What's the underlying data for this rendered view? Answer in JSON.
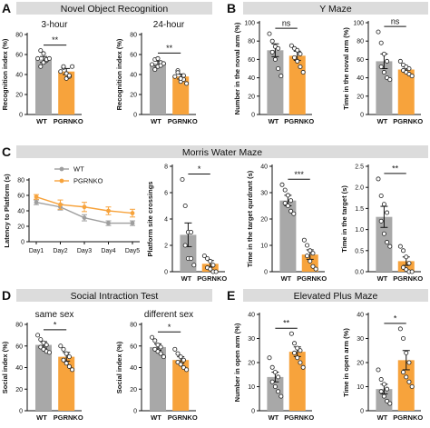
{
  "sections": {
    "A": {
      "letter": "A",
      "title": "Novel Object Recognition"
    },
    "B": {
      "letter": "B",
      "title": "Y Maze"
    },
    "C": {
      "letter": "C",
      "title": "Morris Water Maze"
    },
    "D": {
      "letter": "D",
      "title": "Social Intraction Test"
    },
    "E": {
      "letter": "E",
      "title": "Elevated Plus Maze"
    }
  },
  "colors": {
    "wt": "#a8a8a8",
    "ko": "#f7a33c",
    "band": "#dcdcdc",
    "wt_line": "#9e9e9e",
    "ko_line": "#f7a33c"
  },
  "chart_data": [
    {
      "id": "nor-3h",
      "type": "bar",
      "title": "3-hour",
      "xlabel": "",
      "ylabel": "Recognition index (%)",
      "categories": [
        "WT",
        "PGRNKO"
      ],
      "ylim": [
        0,
        80
      ],
      "yticks": [
        0,
        20,
        40,
        60,
        80
      ],
      "values": [
        55,
        43
      ],
      "errors": [
        3,
        3
      ],
      "significance": "**",
      "points": [
        [
          56,
          64,
          52,
          54,
          48,
          61,
          55,
          56
        ],
        [
          43,
          47,
          36,
          38,
          48,
          41,
          39,
          48
        ]
      ]
    },
    {
      "id": "nor-24h",
      "type": "bar",
      "title": "24-hour",
      "xlabel": "",
      "ylabel": "Recognition index (%)",
      "categories": [
        "WT",
        "PGRNKO"
      ],
      "ylim": [
        0,
        80
      ],
      "yticks": [
        0,
        20,
        40,
        60,
        80
      ],
      "values": [
        51,
        38
      ],
      "errors": [
        2.5,
        2.5
      ],
      "significance": "**",
      "points": [
        [
          50,
          55,
          48,
          52,
          45,
          56,
          49,
          51
        ],
        [
          38,
          44,
          33,
          35,
          42,
          36,
          39,
          31
        ]
      ]
    },
    {
      "id": "ymaze-number",
      "type": "bar",
      "title": "",
      "xlabel": "",
      "ylabel": "Number in the noval arm (%)",
      "categories": [
        "WT",
        "PGRNKO"
      ],
      "ylim": [
        0,
        100
      ],
      "yticks": [
        0,
        20,
        40,
        60,
        80,
        100
      ],
      "values": [
        70,
        64
      ],
      "errors": [
        7,
        5
      ],
      "significance": "ns",
      "points": [
        [
          88,
          80,
          74,
          72,
          68,
          60,
          50,
          42
        ],
        [
          75,
          72,
          70,
          66,
          62,
          58,
          52,
          46
        ]
      ]
    },
    {
      "id": "ymaze-time",
      "type": "bar",
      "title": "",
      "xlabel": "",
      "ylabel": "Time in the noval arm (%)",
      "categories": [
        "WT",
        "PGRNKO"
      ],
      "ylim": [
        0,
        100
      ],
      "yticks": [
        0,
        20,
        40,
        60,
        80,
        100
      ],
      "values": [
        58,
        49
      ],
      "errors": [
        8,
        3
      ],
      "significance": "ns",
      "points": [
        [
          90,
          78,
          66,
          58,
          52,
          46,
          40,
          38
        ],
        [
          58,
          54,
          52,
          50,
          48,
          46,
          44,
          42
        ]
      ]
    },
    {
      "id": "mwm-latency",
      "type": "line",
      "title": "",
      "xlabel": "",
      "ylabel": "Latency to Platform (s)",
      "categories": [
        "Day1",
        "Day2",
        "Day3",
        "Day4",
        "Day5"
      ],
      "ylim": [
        0,
        80
      ],
      "yticks": [
        0,
        20,
        40,
        60,
        80
      ],
      "legend_position": "top",
      "series": [
        {
          "name": "WT",
          "values": [
            51,
            45,
            31,
            24,
            24
          ],
          "errors": [
            3,
            4,
            4,
            3,
            3
          ]
        },
        {
          "name": "PGRNKO",
          "values": [
            58,
            48,
            45,
            40,
            37
          ],
          "errors": [
            3,
            6,
            6,
            5,
            5
          ]
        }
      ]
    },
    {
      "id": "mwm-crossings",
      "type": "bar",
      "title": "",
      "xlabel": "",
      "ylabel": "Platform site crossings",
      "categories": [
        "WT",
        "PGRNKO"
      ],
      "ylim": [
        0,
        8
      ],
      "yticks": [
        0,
        2,
        4,
        6,
        8
      ],
      "values": [
        2.8,
        0.6
      ],
      "errors": [
        0.9,
        0.25
      ],
      "significance": "*",
      "points": [
        [
          7,
          5,
          3,
          3,
          2,
          1,
          1,
          0.5
        ],
        [
          1.2,
          1,
          0.8,
          0.5,
          0.3,
          0.2,
          0,
          0
        ]
      ]
    },
    {
      "id": "mwm-quadrant",
      "type": "bar",
      "title": "",
      "xlabel": "",
      "ylabel": "Time in the target qurdrant (s)",
      "categories": [
        "WT",
        "PGRNKO"
      ],
      "ylim": [
        0,
        40
      ],
      "yticks": [
        0,
        10,
        20,
        30,
        40
      ],
      "values": [
        27,
        6.5
      ],
      "errors": [
        2,
        1.8
      ],
      "significance": "***",
      "points": [
        [
          33,
          31,
          29,
          27,
          26,
          25,
          23,
          22
        ],
        [
          12,
          10,
          8,
          7,
          6,
          4,
          2,
          1
        ]
      ]
    },
    {
      "id": "mwm-target",
      "type": "bar",
      "title": "",
      "xlabel": "",
      "ylabel": "Time in the target (s)",
      "categories": [
        "WT",
        "PGRNKO"
      ],
      "ylim": [
        0,
        2.5
      ],
      "yticks": [
        0.0,
        0.5,
        1.0,
        1.5,
        2.0,
        2.5
      ],
      "values": [
        1.3,
        0.25
      ],
      "errors": [
        0.25,
        0.1
      ],
      "significance": "**",
      "points": [
        [
          2.2,
          1.8,
          1.6,
          1.4,
          1.2,
          0.9,
          0.7,
          0.6
        ],
        [
          0.6,
          0.5,
          0.35,
          0.2,
          0.1,
          0.05,
          0,
          0
        ]
      ]
    },
    {
      "id": "social-same",
      "type": "bar",
      "title": "same sex",
      "xlabel": "",
      "ylabel": "Social index (%)",
      "categories": [
        "WT",
        "PGRNKO"
      ],
      "ylim": [
        0,
        80
      ],
      "yticks": [
        0,
        20,
        40,
        60,
        80
      ],
      "values": [
        61,
        50
      ],
      "errors": [
        3,
        4
      ],
      "significance": "*",
      "points": [
        [
          70,
          66,
          63,
          61,
          59,
          57,
          55,
          54
        ],
        [
          60,
          57,
          53,
          50,
          47,
          44,
          41,
          38
        ]
      ]
    },
    {
      "id": "social-different",
      "type": "bar",
      "title": "different sex",
      "xlabel": "",
      "ylabel": "Social index (%)",
      "categories": [
        "WT",
        "PGRNKO"
      ],
      "ylim": [
        0,
        80
      ],
      "yticks": [
        0,
        20,
        40,
        60,
        80
      ],
      "values": [
        59,
        47
      ],
      "errors": [
        3,
        3
      ],
      "significance": "*",
      "points": [
        [
          68,
          65,
          61,
          59,
          57,
          55,
          53,
          50
        ],
        [
          57,
          53,
          50,
          47,
          45,
          43,
          40,
          38
        ]
      ]
    },
    {
      "id": "epm-number",
      "type": "bar",
      "title": "",
      "xlabel": "",
      "ylabel": "Number in open arm (%)",
      "categories": [
        "WT",
        "PGRNKO"
      ],
      "ylim": [
        0,
        40
      ],
      "yticks": [
        0,
        10,
        20,
        30,
        40
      ],
      "values": [
        14,
        24.5
      ],
      "errors": [
        2,
        2
      ],
      "significance": "**",
      "points": [
        [
          22,
          18,
          16,
          14,
          12,
          10,
          8,
          6
        ],
        [
          32,
          28,
          26,
          25,
          24,
          22,
          20,
          18
        ]
      ]
    },
    {
      "id": "epm-time",
      "type": "bar",
      "title": "",
      "xlabel": "",
      "ylabel": "Time in open arm (%)",
      "categories": [
        "WT",
        "PGRNKO"
      ],
      "ylim": [
        0,
        40
      ],
      "yticks": [
        0,
        10,
        20,
        30,
        40
      ],
      "values": [
        9,
        21
      ],
      "errors": [
        2,
        4
      ],
      "significance": "*",
      "points": [
        [
          17,
          13,
          11,
          9,
          8,
          6,
          4,
          3
        ],
        [
          34,
          30,
          24,
          20,
          16,
          14,
          12,
          10
        ]
      ]
    }
  ]
}
